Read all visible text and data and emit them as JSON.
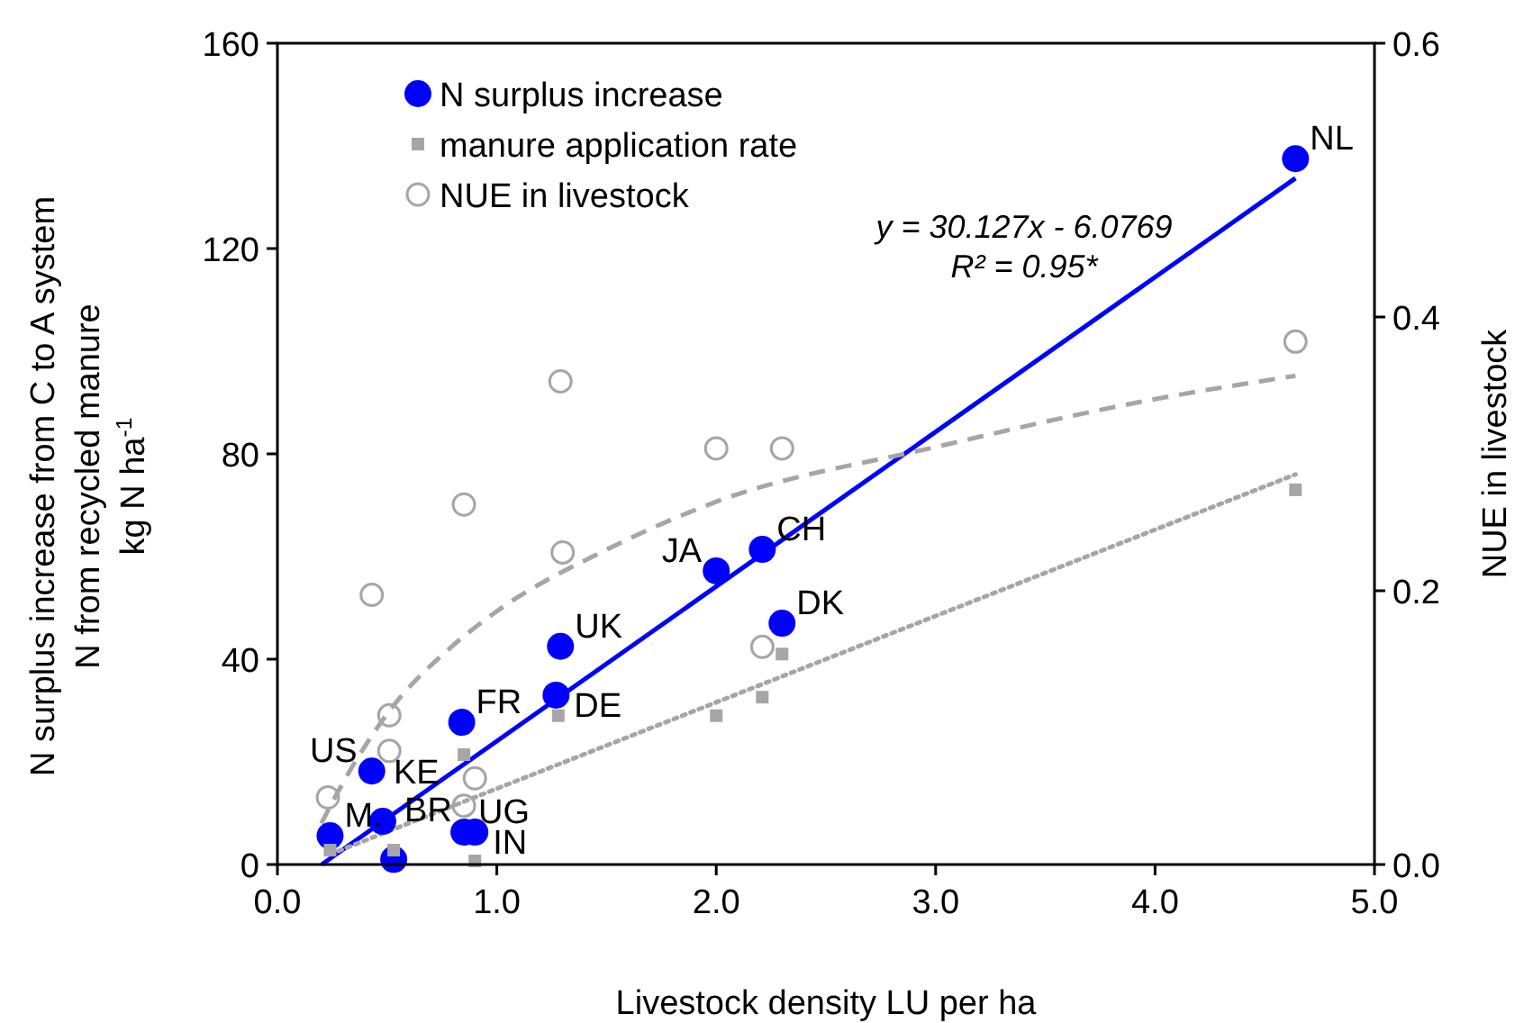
{
  "chart_data": {
    "type": "scatter",
    "xlabel": "Livestock density LU per ha",
    "ylabel": "N surplus increase from C to A system\nN from recycled manure\nkg N ha$^{-1}$",
    "y2label": "NUE in livestock",
    "xlim": [
      0,
      5
    ],
    "xticks": [
      {
        "value": 0,
        "label": "0.0"
      },
      {
        "value": 1,
        "label": "1.0"
      },
      {
        "value": 2,
        "label": "2.0"
      },
      {
        "value": 3,
        "label": "3.0"
      },
      {
        "value": 4,
        "label": "4.0"
      },
      {
        "value": 5,
        "label": "5.0"
      }
    ],
    "ylim": [
      0,
      160
    ],
    "yticks": [
      0,
      40,
      80,
      120,
      160
    ],
    "y2lim": [
      0,
      0.6
    ],
    "y2ticks": [
      {
        "value": 0,
        "label": "0.0"
      },
      {
        "value": 0.2,
        "label": "0.2"
      },
      {
        "value": 0.4,
        "label": "0.4"
      },
      {
        "value": 0.6,
        "label": "0.6"
      }
    ],
    "grid": false,
    "legend": "top left",
    "series": [
      {
        "name": "N surplus increase",
        "marker": "circle",
        "color": "#0000ff",
        "x": [
          0.24,
          0.48,
          0.53,
          0.43,
          0.84,
          0.85,
          0.9,
          1.29,
          1.27,
          2.0,
          2.21,
          2.3,
          4.64
        ],
        "values": [
          5.6,
          8.4,
          1,
          18.2,
          27.7,
          6.3,
          6.3,
          42.5,
          33,
          57.2,
          61.4,
          47,
          137.5
        ]
      },
      {
        "name": "manure application rate",
        "type": "scatter",
        "marker": "square",
        "color": "#a6a6a6",
        "x": [
          0.24,
          0.53,
          0.85,
          0.9,
          1.28,
          2.0,
          2.21,
          2.3,
          4.64
        ],
        "values": [
          2.8,
          2.8,
          21.4,
          0.7,
          29,
          29,
          32.6,
          41,
          73
        ]
      },
      {
        "name": "NUE in livestock",
        "marker": "circle",
        "axis": "y2",
        "color": "#a6a6a6",
        "x": [
          0.23,
          0.43,
          0.51,
          0.51,
          0.9,
          0.85,
          0.85,
          1.29,
          1.3,
          2.0,
          2.3,
          2.21,
          4.64
        ],
        "values": [
          0.049,
          0.197,
          0.109,
          0.083,
          0.063,
          0.043,
          0.263,
          0.353,
          0.228,
          0.304,
          0.304,
          0.159,
          0.382
        ]
      },
      {
        "type": "line",
        "color": "#0000ff",
        "line_style": "solid",
        "x": [
          0.202,
          4.64
        ],
        "values": [
          0,
          133.7
        ]
      },
      {
        "type": "line",
        "color": "#a6a6a6",
        "line_style": "dashed",
        "axis": "y2",
        "x": [
          0.2,
          0.3,
          0.5,
          0.8,
          1.0,
          1.5,
          2.0,
          3.0,
          4.0,
          4.64
        ],
        "values": [
          0.03,
          0.06,
          0.11,
          0.16,
          0.185,
          0.23,
          0.265,
          0.305,
          0.34,
          0.357
        ]
      },
      {
        "type": "line",
        "color": "#a6a6a6",
        "line_style": "dotted",
        "x": [
          0.24,
          4.64
        ],
        "values": [
          2,
          76
        ]
      }
    ],
    "annotations": [
      {
        "text": "NL",
        "x": 4.64,
        "y": 137.5
      },
      {
        "text": "CH",
        "x": 2.21,
        "y": 61.4
      },
      {
        "text": "JA",
        "x": 2.0,
        "y": 57.2
      },
      {
        "text": "DK",
        "x": 2.3,
        "y": 47
      },
      {
        "text": "UK",
        "x": 1.29,
        "y": 42.5
      },
      {
        "text": "DE",
        "x": 1.27,
        "y": 33
      },
      {
        "text": "FR",
        "x": 0.84,
        "y": 27.7
      },
      {
        "text": "US",
        "x": 0.43,
        "y": 18.2
      },
      {
        "text": "M.",
        "x": 0.24,
        "y": 5.6
      },
      {
        "text": "BR",
        "x": 0.53,
        "y": 1
      },
      {
        "text": "KE",
        "x": 0.48,
        "y": 8.4
      },
      {
        "text": "UG",
        "x": 0.85,
        "y": 6.3
      },
      {
        "text": "IN",
        "x": 0.9,
        "y": 6.3
      },
      "y = 30.127x - 6.0769",
      "R² = 0.95*"
    ]
  }
}
